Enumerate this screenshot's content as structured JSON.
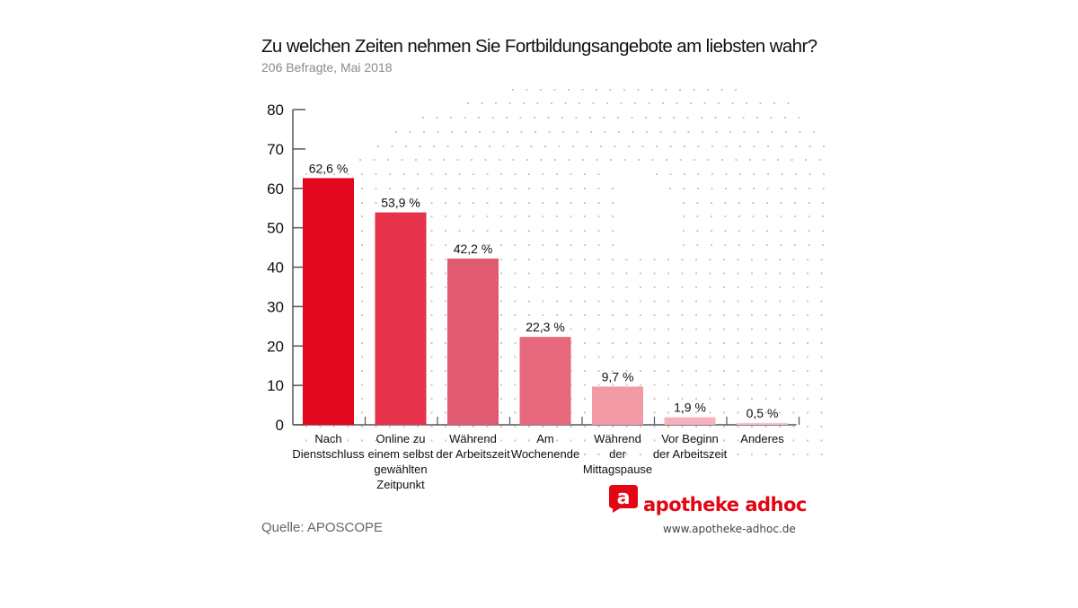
{
  "chart_data": {
    "type": "bar",
    "title": "Zu welchen Zeiten nehmen Sie Fortbildungsangebote am liebsten wahr?",
    "subtitle": "206 Befragte, Mai 2018",
    "xlabel": "",
    "ylabel": "",
    "ylim": [
      0,
      80
    ],
    "yticks": [
      0,
      10,
      20,
      30,
      40,
      50,
      60,
      70,
      80
    ],
    "grid": false,
    "categories": [
      [
        "Nach",
        "Dienstschluss"
      ],
      [
        "Online zu",
        "einem selbst",
        "gewählten",
        "Zeitpunkt"
      ],
      [
        "Während",
        "der Arbeitszeit"
      ],
      [
        "Am",
        "Wochenende"
      ],
      [
        "Während",
        "der",
        "Mittagspause"
      ],
      [
        "Vor Beginn",
        "der Arbeitszeit"
      ],
      [
        "Anderes"
      ]
    ],
    "values": [
      62.6,
      53.9,
      42.2,
      22.3,
      9.7,
      1.9,
      0.5
    ],
    "value_labels": [
      "62,6 %",
      "53,9 %",
      "42,2 %",
      "22,3 %",
      "9,7 %",
      "1,9 %",
      "0,5 %"
    ],
    "bar_colors": [
      "#e2071c",
      "#e6324a",
      "#e05a72",
      "#e5687d",
      "#f29aa6",
      "#f6b3bd",
      "#f8c4cb"
    ]
  },
  "source": "Quelle: APOSCOPE",
  "brand": {
    "name": "apotheke adhoc",
    "url": "www.apotheke-adhoc.de",
    "mark_letter": "a",
    "color": "#e30613"
  }
}
